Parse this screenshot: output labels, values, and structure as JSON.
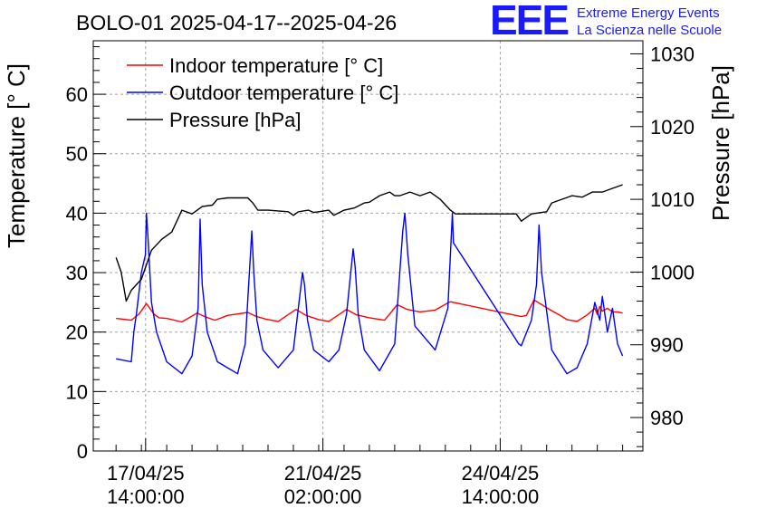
{
  "header": {
    "title": "BOLO-01 2025-04-17--2025-04-26",
    "logo_text": "EEE",
    "logo_line1": "Extreme Energy Events",
    "logo_line2": "La Scienza nelle Scuole"
  },
  "colors": {
    "indoor": "#ff0000",
    "outdoor": "#0000ff",
    "pressure": "#000000",
    "logo": "#1a1aff",
    "grid": "#a0a0a0"
  },
  "chart_data": {
    "type": "line",
    "title": "BOLO-01 2025-04-17--2025-04-26",
    "xlabel": "",
    "ylabel": "Temperature [° C]",
    "y2label": "Pressure [hPa]",
    "grid": true,
    "legend_position": "top-left",
    "x_unit": "days since 2025-04-17 00:00",
    "xlim": [
      -0.45,
      10.4
    ],
    "ylim": [
      0,
      69
    ],
    "y2lim": [
      975.4,
      1031.8
    ],
    "y_ticks": [
      0,
      10,
      20,
      30,
      40,
      50,
      60
    ],
    "y2_ticks": [
      980,
      990,
      1000,
      1010,
      1020,
      1030
    ],
    "x_ticks": [
      {
        "x": 0.5833,
        "line1": "17/04/25",
        "line2": "14:00:00"
      },
      {
        "x": 4.0833,
        "line1": "21/04/25",
        "line2": "02:00:00"
      },
      {
        "x": 7.5833,
        "line1": "24/04/25",
        "line2": "14:00:00"
      }
    ],
    "series": [
      {
        "name": "Indoor temperature [° C]",
        "axis": "left",
        "x": [
          0.0,
          0.3,
          0.45,
          0.6,
          0.75,
          0.85,
          1.0,
          1.3,
          1.6,
          1.75,
          1.95,
          2.2,
          2.6,
          2.75,
          2.95,
          3.2,
          3.55,
          3.75,
          4.0,
          4.2,
          4.55,
          4.75,
          5.0,
          5.3,
          5.55,
          5.75,
          6.0,
          6.3,
          6.55,
          6.6,
          8.0,
          8.1,
          8.25,
          8.6,
          8.75,
          8.9,
          9.1,
          9.3,
          9.45,
          9.5,
          9.55,
          9.6,
          9.7,
          9.8,
          9.9,
          10.0
        ],
        "y": [
          22.3,
          22.0,
          23.0,
          24.8,
          23.0,
          22.4,
          22.3,
          21.7,
          23.2,
          22.6,
          22.0,
          22.8,
          23.3,
          22.7,
          22.2,
          21.8,
          23.8,
          22.8,
          22.1,
          21.8,
          23.8,
          22.9,
          22.4,
          22.0,
          24.6,
          23.8,
          23.4,
          23.7,
          24.9,
          25.1,
          22.6,
          22.8,
          25.4,
          23.6,
          22.9,
          22.1,
          21.8,
          22.9,
          24.0,
          23.0,
          24.3,
          23.5,
          24.0,
          23.4,
          23.4,
          23.2
        ]
      },
      {
        "name": "Outdoor temperature [° C]",
        "axis": "left",
        "x": [
          0.0,
          0.3,
          0.35,
          0.4,
          0.5,
          0.58,
          0.6,
          0.63,
          0.7,
          0.8,
          1.0,
          1.3,
          1.5,
          1.62,
          1.66,
          1.7,
          1.8,
          2.0,
          2.4,
          2.55,
          2.68,
          2.72,
          2.78,
          2.9,
          3.2,
          3.5,
          3.68,
          3.72,
          3.78,
          3.9,
          4.2,
          4.4,
          4.55,
          4.68,
          4.72,
          4.78,
          4.9,
          5.2,
          5.5,
          5.66,
          5.7,
          5.76,
          5.9,
          6.3,
          6.55,
          6.64,
          6.66,
          7.95,
          8.0,
          8.2,
          8.3,
          8.35,
          8.4,
          8.6,
          8.9,
          9.1,
          9.3,
          9.45,
          9.55,
          9.6,
          9.7,
          9.8,
          9.9,
          10.0
        ],
        "y": [
          15.5,
          15.0,
          20.0,
          23.0,
          30.0,
          33.0,
          40.0,
          36.0,
          25.0,
          20.0,
          15.0,
          13.0,
          16.0,
          24.0,
          39.0,
          28.0,
          20.0,
          15.0,
          13.0,
          18.0,
          37.0,
          30.0,
          22.0,
          17.0,
          14.0,
          17.0,
          30.0,
          28.0,
          22.0,
          17.0,
          15.0,
          17.0,
          23.0,
          34.0,
          31.0,
          23.0,
          17.0,
          13.5,
          18.0,
          37.0,
          40.0,
          33.0,
          21.0,
          17.0,
          24.0,
          40.0,
          35.0,
          18.0,
          17.7,
          22.0,
          28.0,
          38.0,
          30.0,
          17.0,
          13.0,
          14.0,
          18.0,
          25.0,
          22.0,
          26.0,
          20.0,
          24.0,
          18.0,
          16.0
        ]
      },
      {
        "name": "Pressure [hPa]",
        "axis": "right",
        "x": [
          0.0,
          0.1,
          0.2,
          0.3,
          0.5,
          0.6,
          0.7,
          0.9,
          1.1,
          1.2,
          1.3,
          1.5,
          1.7,
          1.9,
          2.0,
          2.2,
          2.6,
          2.7,
          2.8,
          3.0,
          3.4,
          3.5,
          3.6,
          3.8,
          3.9,
          4.0,
          4.2,
          4.3,
          4.5,
          4.7,
          4.9,
          5.0,
          5.2,
          5.4,
          5.5,
          5.6,
          5.8,
          6.0,
          6.2,
          6.4,
          6.6,
          6.7,
          7.9,
          8.0,
          8.2,
          8.5,
          8.6,
          8.8,
          9.0,
          9.2,
          9.4,
          9.6,
          9.8,
          10.0
        ],
        "y": [
          1002.0,
          1000.0,
          996.0,
          997.5,
          999.0,
          1001.0,
          1003.0,
          1004.5,
          1005.5,
          1007.0,
          1008.5,
          1008.0,
          1009.0,
          1009.2,
          1010.0,
          1010.2,
          1010.2,
          1009.5,
          1008.5,
          1008.5,
          1008.3,
          1007.8,
          1008.3,
          1008.5,
          1008.2,
          1008.3,
          1008.5,
          1007.8,
          1008.5,
          1008.8,
          1009.5,
          1009.6,
          1010.5,
          1011.0,
          1010.5,
          1010.5,
          1011.0,
          1010.5,
          1011.0,
          1010.0,
          1008.5,
          1008.0,
          1008.0,
          1007.0,
          1008.0,
          1008.3,
          1009.5,
          1010.0,
          1010.5,
          1010.3,
          1011.0,
          1011.0,
          1011.5,
          1012.0
        ]
      }
    ]
  }
}
